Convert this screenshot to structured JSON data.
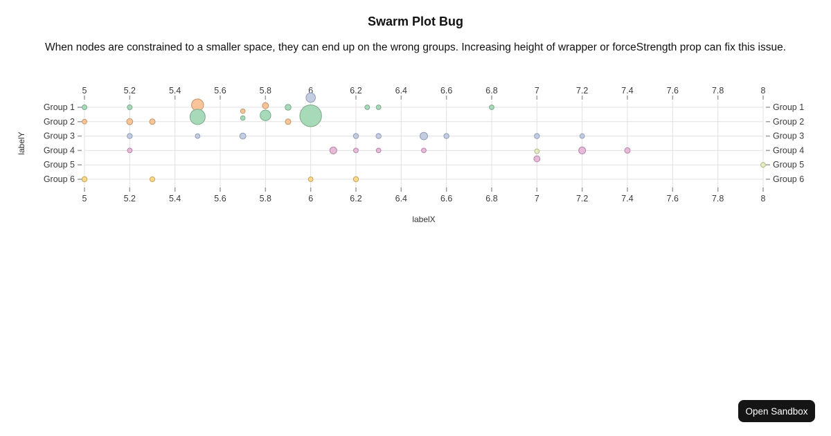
{
  "page": {
    "title": "Swarm Plot Bug",
    "subtitle": "When nodes are constrained to a smaller space, they can end up on the wrong groups. Increasing height of wrapper or forceStrength prop can fix this issue.",
    "button_label": "Open Sandbox"
  },
  "chart_data": {
    "type": "scatter",
    "variant": "swarm-bubble-plot",
    "title": "Swarm Plot Bug",
    "xlabel": "labelX",
    "ylabel": "labelY",
    "xlim": [
      5,
      8
    ],
    "x_ticks": [
      "5",
      "5.2",
      "5.4",
      "5.6",
      "5.8",
      "6",
      "6.2",
      "6.4",
      "6.6",
      "6.8",
      "7",
      "7.2",
      "7.4",
      "7.6",
      "7.8",
      "8"
    ],
    "y_categories": [
      "Group 1",
      "Group 2",
      "Group 3",
      "Group 4",
      "Group 5",
      "Group 6"
    ],
    "grid": true,
    "axes": [
      "top",
      "bottom",
      "left",
      "right"
    ],
    "row_unit": "group index (1 = Group 1 row); fractional row = node displaced off its group row",
    "style": {
      "grid": "#e0e0e0",
      "tick": "#9b9b9b",
      "text": "#3b3b3b"
    },
    "series": [
      {
        "name": "Group 2",
        "color": "#f9c499",
        "border": "#c29468",
        "points": [
          {
            "x": 5.0,
            "row": 2,
            "r": 3.4
          },
          {
            "x": 5.2,
            "row": 2,
            "r": 4.4
          },
          {
            "x": 5.3,
            "row": 2,
            "r": 4.0
          },
          {
            "x": 5.5,
            "row": 0.84,
            "r": 8.7
          },
          {
            "x": 5.7,
            "row": 1.27,
            "r": 3.3
          },
          {
            "x": 5.8,
            "row": 0.89,
            "r": 4.4
          },
          {
            "x": 5.9,
            "row": 2,
            "r": 4.0
          }
        ]
      },
      {
        "name": "Group 1",
        "color": "#a7dab8",
        "border": "#7ca889",
        "points": [
          {
            "x": 5.0,
            "row": 1,
            "r": 3.5
          },
          {
            "x": 5.2,
            "row": 1,
            "r": 3.5
          },
          {
            "x": 5.5,
            "row": 1.67,
            "r": 11.0
          },
          {
            "x": 5.7,
            "row": 1.75,
            "r": 3.3
          },
          {
            "x": 5.8,
            "row": 1.56,
            "r": 7.7
          },
          {
            "x": 5.9,
            "row": 1,
            "r": 4.3
          },
          {
            "x": 6.0,
            "row": 1.59,
            "r": 15.7
          },
          {
            "x": 6.25,
            "row": 1,
            "r": 3.4
          },
          {
            "x": 6.3,
            "row": 1,
            "r": 3.4
          },
          {
            "x": 6.8,
            "row": 1,
            "r": 3.4
          }
        ]
      },
      {
        "name": "Group 3",
        "color": "#c3cde1",
        "border": "#8f9bb8",
        "points": [
          {
            "x": 5.2,
            "row": 3,
            "r": 3.7
          },
          {
            "x": 5.5,
            "row": 3,
            "r": 3.4
          },
          {
            "x": 5.7,
            "row": 3,
            "r": 4.4
          },
          {
            "x": 6.0,
            "row": 0.33,
            "r": 6.8
          },
          {
            "x": 6.2,
            "row": 3,
            "r": 3.7
          },
          {
            "x": 6.3,
            "row": 3,
            "r": 3.7
          },
          {
            "x": 6.5,
            "row": 3,
            "r": 5.4
          },
          {
            "x": 6.6,
            "row": 3,
            "r": 3.7
          },
          {
            "x": 7.0,
            "row": 3,
            "r": 3.7
          },
          {
            "x": 7.2,
            "row": 3,
            "r": 3.4
          }
        ]
      },
      {
        "name": "Group 4",
        "color": "#e8bada",
        "border": "#b386a4",
        "points": [
          {
            "x": 5.2,
            "row": 4,
            "r": 3.4
          },
          {
            "x": 6.1,
            "row": 4,
            "r": 5.0
          },
          {
            "x": 6.2,
            "row": 4,
            "r": 3.4
          },
          {
            "x": 6.3,
            "row": 4,
            "r": 3.4
          },
          {
            "x": 6.5,
            "row": 4,
            "r": 3.4
          },
          {
            "x": 7.0,
            "row": 4.58,
            "r": 4.4
          },
          {
            "x": 7.2,
            "row": 4,
            "r": 5.0
          },
          {
            "x": 7.4,
            "row": 4,
            "r": 4.0
          }
        ]
      },
      {
        "name": "Group 5",
        "color": "#e6edc4",
        "border": "#adb584",
        "points": [
          {
            "x": 7.0,
            "row": 4.06,
            "r": 3.4
          },
          {
            "x": 8.0,
            "row": 5,
            "r": 3.4
          }
        ]
      },
      {
        "name": "Group 6",
        "color": "#fcd98a",
        "border": "#c8a254",
        "points": [
          {
            "x": 5.0,
            "row": 6,
            "r": 3.7
          },
          {
            "x": 5.3,
            "row": 6,
            "r": 3.5
          },
          {
            "x": 6.0,
            "row": 6,
            "r": 3.4
          },
          {
            "x": 6.2,
            "row": 6,
            "r": 3.7
          }
        ]
      }
    ]
  }
}
